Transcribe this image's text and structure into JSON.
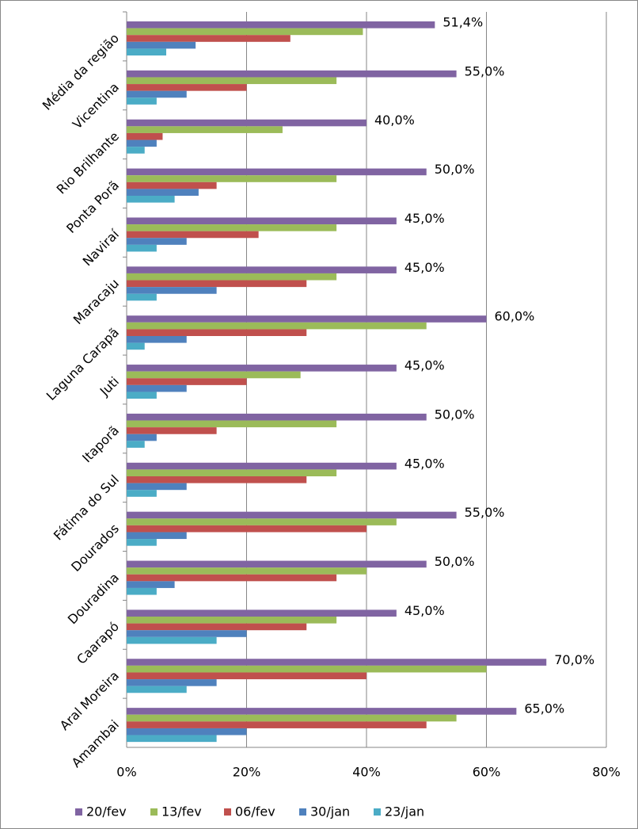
{
  "chart_data": {
    "type": "bar",
    "orientation": "horizontal",
    "categories": [
      "Média da região",
      "Vicentina",
      "Rio Brilhante",
      "Ponta Porã",
      "Naviraí",
      "Maracaju",
      "Laguna Carapã",
      "Juti",
      "Itaporã",
      "Fátima do Sul",
      "Dourados",
      "Douradina",
      "Caarapó",
      "Aral Moreira",
      "Amambai"
    ],
    "series": [
      {
        "name": "20/fev",
        "color": "#8064a2",
        "values": [
          51.4,
          55,
          40,
          50,
          45,
          45,
          60,
          45,
          50,
          45,
          55,
          50,
          45,
          70,
          65
        ],
        "value_labels": [
          "51,4%",
          "55,0%",
          "40,0%",
          "50,0%",
          "45,0%",
          "45,0%",
          "60,0%",
          "45,0%",
          "50,0%",
          "45,0%",
          "55,0%",
          "50,0%",
          "45,0%",
          "70,0%",
          "65,0%"
        ]
      },
      {
        "name": "13/fev",
        "color": "#9bbb59",
        "values": [
          39.4,
          35,
          26,
          35,
          35,
          35,
          50,
          29,
          35,
          35,
          45,
          40,
          35,
          60,
          55
        ]
      },
      {
        "name": "06/fev",
        "color": "#c0504d",
        "values": [
          27.3,
          20,
          6,
          15,
          22,
          30,
          30,
          20,
          15,
          30,
          40,
          35,
          30,
          40,
          50
        ]
      },
      {
        "name": "30/jan",
        "color": "#4f81bd",
        "values": [
          11.5,
          10,
          5,
          12,
          10,
          15,
          10,
          10,
          5,
          10,
          10,
          8,
          20,
          15,
          20
        ]
      },
      {
        "name": "23/jan",
        "color": "#4bacc6",
        "values": [
          6.6,
          5,
          3,
          8,
          5,
          5,
          3,
          5,
          3,
          5,
          5,
          5,
          15,
          10,
          15
        ]
      }
    ],
    "xlim": [
      0,
      80
    ],
    "xticks": [
      {
        "value": 0,
        "label": "0%"
      },
      {
        "value": 20,
        "label": "20%"
      },
      {
        "value": 40,
        "label": "40%"
      },
      {
        "value": 60,
        "label": "60%"
      },
      {
        "value": 80,
        "label": "80%"
      }
    ],
    "grid": true,
    "legend": "bottom"
  }
}
